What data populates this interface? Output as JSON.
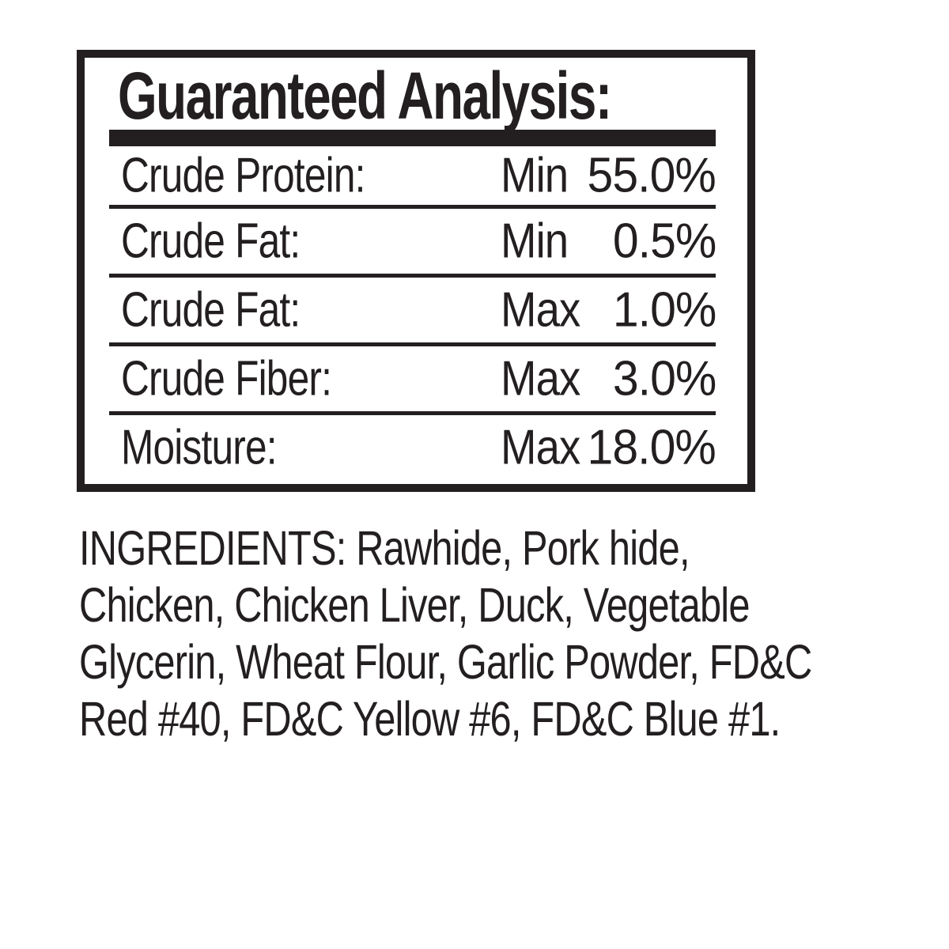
{
  "colors": {
    "ink": "#231f20",
    "background": "#ffffff"
  },
  "guaranteed_analysis": {
    "title": "Guaranteed Analysis:",
    "rows": [
      {
        "label": "Crude Protein:",
        "qualifier": "Min",
        "value": "55.0%"
      },
      {
        "label": "Crude Fat:",
        "qualifier": "Min",
        "value": "0.5%"
      },
      {
        "label": "Crude Fat:",
        "qualifier": "Max",
        "value": "1.0%"
      },
      {
        "label": "Crude Fiber:",
        "qualifier": "Max",
        "value": "3.0%"
      },
      {
        "label": "Moisture:",
        "qualifier": "Max",
        "value": "18.0%"
      }
    ]
  },
  "ingredients": {
    "lines": [
      "INGREDIENTS: Rawhide, Pork hide,",
      "Chicken, Chicken Liver, Duck, Vegetable",
      "Glycerin, Wheat Flour, Garlic Powder, FD&C",
      "Red #40, FD&C Yellow #6, FD&C Blue #1."
    ]
  }
}
